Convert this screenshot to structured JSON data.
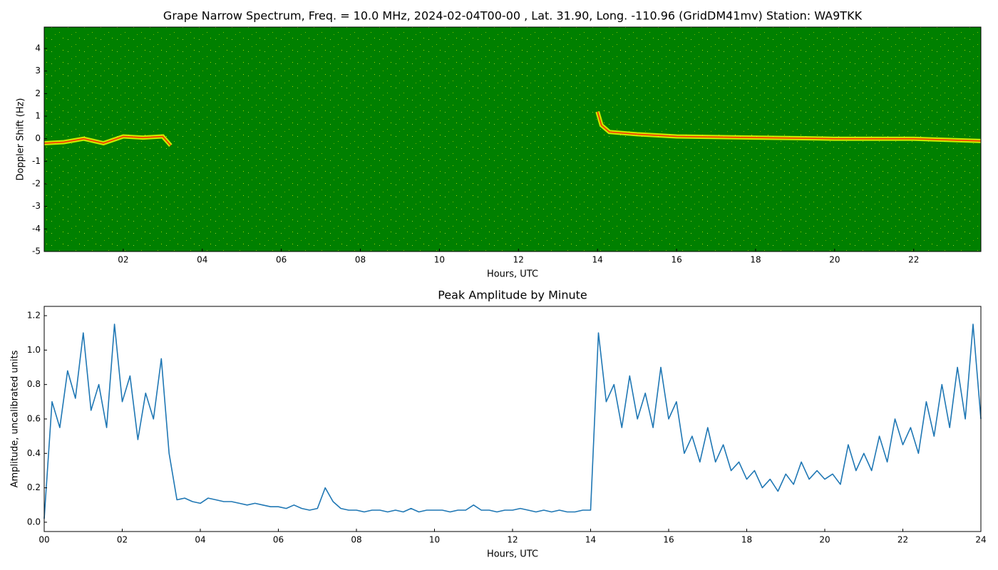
{
  "chart_data": [
    {
      "type": "spectrogram",
      "title": "Grape Narrow Spectrum, Freq. = 10.0 MHz, 2024-02-04T00-00 , Lat.  31.90, Long. -110.96 (GridDM41mv) Station: WA9TKK",
      "x_label": "Hours, UTC",
      "y_label": "Doppler Shift (Hz)",
      "background": "#008000",
      "halo_color": "#ffff00",
      "color": "#ff2a00",
      "x": [
        0,
        0.5,
        1,
        1.5,
        2,
        2.5,
        3,
        3.2,
        8,
        14.0,
        14.1,
        14.3,
        15,
        16,
        18,
        20,
        22,
        23.7
      ],
      "values": [
        -0.2,
        -0.15,
        0.0,
        -0.2,
        0.1,
        0.05,
        0.1,
        -0.3,
        null,
        1.2,
        0.6,
        0.3,
        0.2,
        0.1,
        0.05,
        0.0,
        0.0,
        -0.1
      ],
      "xlim": [
        0,
        23.7
      ],
      "xticks": [
        {
          "value": 2,
          "label": "02"
        },
        {
          "value": 4,
          "label": "04"
        },
        {
          "value": 6,
          "label": "06"
        },
        {
          "value": 8,
          "label": "08"
        },
        {
          "value": 10,
          "label": "10"
        },
        {
          "value": 12,
          "label": "12"
        },
        {
          "value": 14,
          "label": "14"
        },
        {
          "value": 16,
          "label": "16"
        },
        {
          "value": 18,
          "label": "18"
        },
        {
          "value": 20,
          "label": "20"
        },
        {
          "value": 22,
          "label": "22"
        }
      ],
      "ylim": [
        -5,
        4.95
      ],
      "yticks": [
        -5,
        -4,
        -3,
        -2,
        -1,
        0,
        1,
        2,
        3,
        4
      ]
    },
    {
      "type": "line",
      "title": "Peak Amplitude by Minute",
      "x_label": "Hours, UTC",
      "y_label": "Amplitude, uncalibrated units",
      "color": "#1f77b4",
      "x": [
        0.0,
        0.2,
        0.4,
        0.6,
        0.8,
        1.0,
        1.2,
        1.4,
        1.6,
        1.8,
        2.0,
        2.2,
        2.4,
        2.6,
        2.8,
        3.0,
        3.2,
        3.4,
        3.6,
        3.8,
        4.0,
        4.2,
        4.4,
        4.6,
        4.8,
        5.0,
        5.2,
        5.4,
        5.6,
        5.8,
        6.0,
        6.2,
        6.4,
        6.6,
        6.8,
        7.0,
        7.2,
        7.4,
        7.6,
        7.8,
        8.0,
        8.2,
        8.4,
        8.6,
        8.8,
        9.0,
        9.2,
        9.4,
        9.6,
        9.8,
        10.0,
        10.2,
        10.4,
        10.6,
        10.8,
        11.0,
        11.2,
        11.4,
        11.6,
        11.8,
        12.0,
        12.2,
        12.4,
        12.6,
        12.8,
        13.0,
        13.2,
        13.4,
        13.6,
        13.8,
        14.0,
        14.2,
        14.4,
        14.6,
        14.8,
        15.0,
        15.2,
        15.4,
        15.6,
        15.8,
        16.0,
        16.2,
        16.4,
        16.6,
        16.8,
        17.0,
        17.2,
        17.4,
        17.6,
        17.8,
        18.0,
        18.2,
        18.4,
        18.6,
        18.8,
        19.0,
        19.2,
        19.4,
        19.6,
        19.8,
        20.0,
        20.2,
        20.4,
        20.6,
        20.8,
        21.0,
        21.2,
        21.4,
        21.6,
        21.8,
        22.0,
        22.2,
        22.4,
        22.6,
        22.8,
        23.0,
        23.2,
        23.4,
        23.6,
        23.8,
        24.0
      ],
      "values": [
        0.02,
        0.7,
        0.55,
        0.88,
        0.72,
        1.1,
        0.65,
        0.8,
        0.55,
        1.15,
        0.7,
        0.85,
        0.48,
        0.75,
        0.6,
        0.95,
        0.4,
        0.13,
        0.14,
        0.12,
        0.11,
        0.14,
        0.13,
        0.12,
        0.12,
        0.11,
        0.1,
        0.11,
        0.1,
        0.09,
        0.09,
        0.08,
        0.1,
        0.08,
        0.07,
        0.08,
        0.2,
        0.12,
        0.08,
        0.07,
        0.07,
        0.06,
        0.07,
        0.07,
        0.06,
        0.07,
        0.06,
        0.08,
        0.06,
        0.07,
        0.07,
        0.07,
        0.06,
        0.07,
        0.07,
        0.1,
        0.07,
        0.07,
        0.06,
        0.07,
        0.07,
        0.08,
        0.07,
        0.06,
        0.07,
        0.06,
        0.07,
        0.06,
        0.06,
        0.07,
        0.07,
        1.1,
        0.7,
        0.8,
        0.55,
        0.85,
        0.6,
        0.75,
        0.55,
        0.9,
        0.6,
        0.7,
        0.4,
        0.5,
        0.35,
        0.55,
        0.35,
        0.45,
        0.3,
        0.35,
        0.25,
        0.3,
        0.2,
        0.25,
        0.18,
        0.28,
        0.22,
        0.35,
        0.25,
        0.3,
        0.25,
        0.28,
        0.22,
        0.45,
        0.3,
        0.4,
        0.3,
        0.5,
        0.35,
        0.6,
        0.45,
        0.55,
        0.4,
        0.7,
        0.5,
        0.8,
        0.55,
        0.9,
        0.6,
        1.15,
        0.6
      ],
      "xlim": [
        0,
        24
      ],
      "xticks": [
        {
          "value": 0,
          "label": "00"
        },
        {
          "value": 2,
          "label": "02"
        },
        {
          "value": 4,
          "label": "04"
        },
        {
          "value": 6,
          "label": "06"
        },
        {
          "value": 8,
          "label": "08"
        },
        {
          "value": 10,
          "label": "10"
        },
        {
          "value": 12,
          "label": "12"
        },
        {
          "value": 14,
          "label": "14"
        },
        {
          "value": 16,
          "label": "16"
        },
        {
          "value": 18,
          "label": "18"
        },
        {
          "value": 20,
          "label": "20"
        },
        {
          "value": 22,
          "label": "22"
        },
        {
          "value": 24,
          "label": "24"
        }
      ],
      "ylim": [
        -0.054,
        1.254
      ],
      "yticks": [
        {
          "value": 0,
          "label": "0.0"
        },
        0.2,
        0.4,
        0.6,
        0.8,
        {
          "value": 1,
          "label": "1.0"
        },
        1.2
      ]
    }
  ]
}
